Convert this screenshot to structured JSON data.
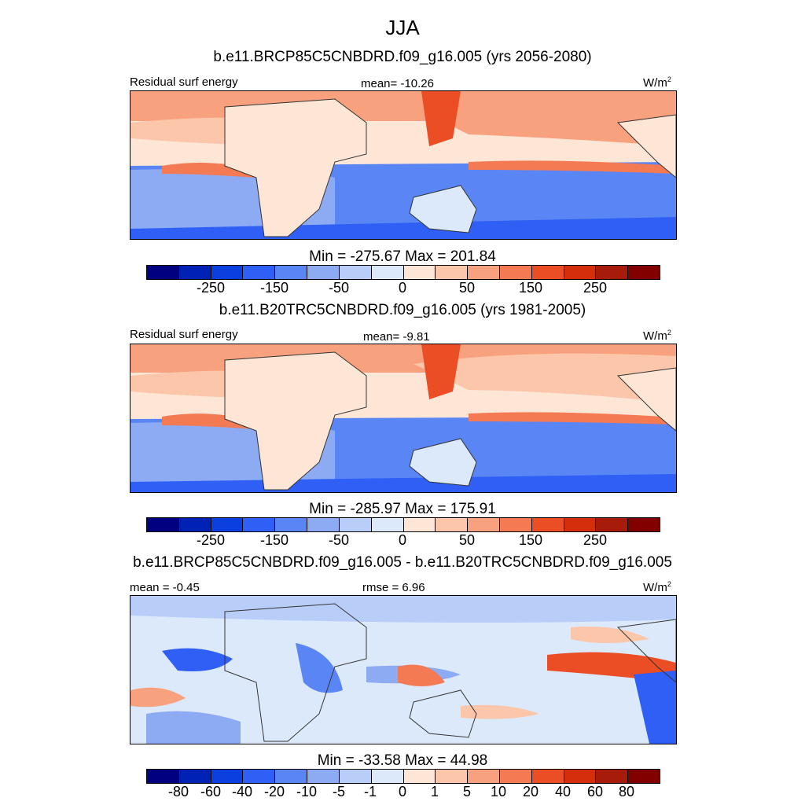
{
  "season": "JJA",
  "colors": [
    "#000080",
    "#0022b4",
    "#0b3fe0",
    "#2f5ff5",
    "#5a85f4",
    "#8cabf3",
    "#b8cdf8",
    "#dce9fb",
    "#fde6d6",
    "#fbc6a9",
    "#f8a17f",
    "#f47a53",
    "#eb4d24",
    "#d42e0c",
    "#a71b0b",
    "#820000"
  ],
  "panels": [
    {
      "title": "b.e11.BRCP85C5CNBDRD.f09_g16.005 (yrs 2056-2080)",
      "left_label": "Residual surf energy",
      "center_label": "mean= -10.26",
      "units": "W/m",
      "units_sup": "2",
      "minmax": "Min = -275.67 Max = 201.84",
      "ticks": [
        "-250",
        "-150",
        "-50",
        "0",
        "50",
        "150",
        "250"
      ]
    },
    {
      "title": "b.e11.B20TRC5CNBDRD.f09_g16.005 (yrs 1981-2005)",
      "left_label": "Residual surf energy",
      "center_label": "mean=  -9.81",
      "units": "W/m",
      "units_sup": "2",
      "minmax": "Min = -285.97 Max = 175.91",
      "ticks": [
        "-250",
        "-150",
        "-50",
        "0",
        "50",
        "150",
        "250"
      ]
    },
    {
      "title": "b.e11.BRCP85C5CNBDRD.f09_g16.005 - b.e11.B20TRC5CNBDRD.f09_g16.005",
      "left_label": "mean =  -0.45",
      "center_label": "rmse =   6.96",
      "units": "W/m",
      "units_sup": "2",
      "minmax": "Min = -33.58 Max =  44.98",
      "ticks": [
        "-80",
        "-60",
        "-40",
        "-20",
        "-10",
        "-5",
        "-1",
        "0",
        "1",
        "5",
        "10",
        "20",
        "40",
        "60",
        "80"
      ]
    }
  ]
}
